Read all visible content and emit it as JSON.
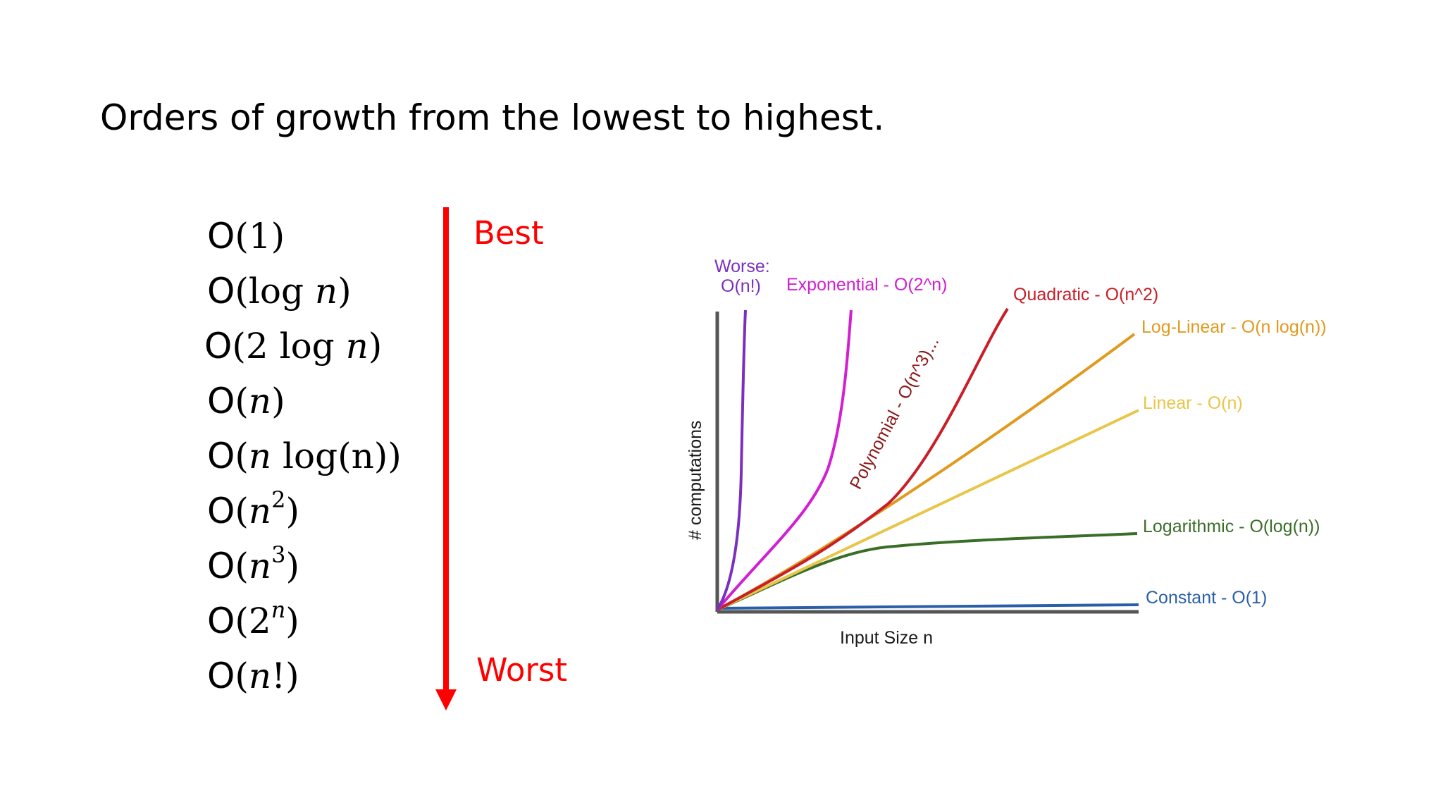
{
  "title": "Orders of growth from the lowest to highest.",
  "orders": [
    {
      "o": "O",
      "rest": "(1)",
      "sup": ""
    },
    {
      "o": "O",
      "rest": "(log ",
      "var": "n",
      "close": ")",
      "sup": ""
    },
    {
      "o": "O",
      "rest": "(2 log ",
      "var": "n",
      "close": ")",
      "sup": ""
    },
    {
      "o": "O",
      "rest": "(",
      "var": "n",
      "close": ")",
      "sup": ""
    },
    {
      "o": "O",
      "rest": "(",
      "var": "n",
      "close": " log(n))",
      "sup": ""
    },
    {
      "o": "O",
      "rest": "(",
      "var": "n",
      "close": ")",
      "sup": "2"
    },
    {
      "o": "O",
      "rest": "(",
      "var": "n",
      "close": ")",
      "sup": "3"
    },
    {
      "o": "O",
      "rest": "(2",
      "var": "",
      "close": ")",
      "sup": "n"
    },
    {
      "o": "O",
      "rest": "(",
      "var": "n",
      "close": "!)",
      "sup": ""
    }
  ],
  "scale": {
    "best": "Best",
    "worst": "Worst",
    "arrow_color": "#ff0000"
  },
  "chart": {
    "xlabel": "Input Size n",
    "ylabel": "# computations",
    "curves": [
      {
        "label": "Worse:\nO(n!)",
        "color": "#7b2fbe"
      },
      {
        "label": "Exponential - O(2^n)",
        "color": "#d21fd2"
      },
      {
        "label": "Polynomial - O(n^3)...",
        "color": "#8b1a1a"
      },
      {
        "label": "Quadratic - O(n^2)",
        "color": "#c81e28"
      },
      {
        "label": "Log-Linear - O(n log(n))",
        "color": "#e09a1e"
      },
      {
        "label": "Linear - O(n)",
        "color": "#e8c64a"
      },
      {
        "label": "Logarithmic - O(log(n))",
        "color": "#3a6e28"
      },
      {
        "label": "Constant - O(1)",
        "color": "#2a5fa8"
      }
    ]
  }
}
